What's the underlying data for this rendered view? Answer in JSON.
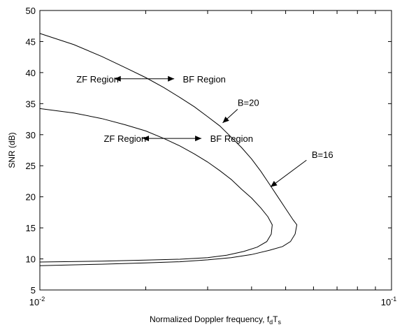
{
  "chart_data": {
    "type": "line",
    "title": "",
    "xlabel": "Normalized Doppler frequency, f_dT_s",
    "xlabel_main": "Normalized Doppler frequency, f",
    "xlabel_sub1": "d",
    "xlabel_mid": "T",
    "xlabel_sub2": "s",
    "ylabel": "SNR (dB)",
    "xscale": "log",
    "xlim": [
      0.01,
      0.1
    ],
    "ylim": [
      5,
      50
    ],
    "grid": false,
    "x_ticks": [
      {
        "value": 0.01,
        "base": "10",
        "exp": "-2"
      },
      {
        "value": 0.1,
        "base": "10",
        "exp": "-1"
      }
    ],
    "y_ticks": [
      5,
      10,
      15,
      20,
      25,
      30,
      35,
      40,
      45,
      50
    ],
    "series": [
      {
        "name": "B=20",
        "points": [
          [
            0.01,
            46.3
          ],
          [
            0.0125,
            44.5
          ],
          [
            0.015,
            42.6
          ],
          [
            0.0175,
            40.8
          ],
          [
            0.02,
            39.2
          ],
          [
            0.0225,
            37.6
          ],
          [
            0.025,
            36.0
          ],
          [
            0.0275,
            34.5
          ],
          [
            0.03,
            32.9
          ],
          [
            0.0325,
            31.4
          ],
          [
            0.035,
            29.6
          ],
          [
            0.0375,
            27.9
          ],
          [
            0.04,
            26.1
          ],
          [
            0.0425,
            24.1
          ],
          [
            0.045,
            22.0
          ],
          [
            0.0475,
            20.0
          ],
          [
            0.05,
            18.1
          ],
          [
            0.0525,
            16.3
          ],
          [
            0.0538,
            15.5
          ],
          [
            0.0532,
            14.0
          ],
          [
            0.0516,
            12.8
          ],
          [
            0.049,
            12.0
          ],
          [
            0.045,
            11.4
          ],
          [
            0.04,
            10.7
          ],
          [
            0.035,
            10.2
          ],
          [
            0.03,
            9.85
          ],
          [
            0.025,
            9.55
          ],
          [
            0.02,
            9.35
          ],
          [
            0.015,
            9.15
          ],
          [
            0.01,
            8.9
          ]
        ]
      },
      {
        "name": "B=16",
        "points": [
          [
            0.01,
            34.2
          ],
          [
            0.0125,
            33.5
          ],
          [
            0.015,
            32.6
          ],
          [
            0.0175,
            31.6
          ],
          [
            0.02,
            30.6
          ],
          [
            0.0225,
            29.4
          ],
          [
            0.025,
            28.2
          ],
          [
            0.0275,
            26.9
          ],
          [
            0.03,
            25.6
          ],
          [
            0.0325,
            24.2
          ],
          [
            0.035,
            22.8
          ],
          [
            0.0375,
            21.2
          ],
          [
            0.04,
            19.8
          ],
          [
            0.0425,
            18.2
          ],
          [
            0.0445,
            16.8
          ],
          [
            0.0458,
            15.5
          ],
          [
            0.0455,
            14.0
          ],
          [
            0.0442,
            12.8
          ],
          [
            0.0415,
            11.9
          ],
          [
            0.038,
            11.2
          ],
          [
            0.034,
            10.6
          ],
          [
            0.03,
            10.2
          ],
          [
            0.025,
            9.95
          ],
          [
            0.02,
            9.8
          ],
          [
            0.015,
            9.65
          ],
          [
            0.01,
            9.5
          ]
        ]
      }
    ],
    "annotations": [
      {
        "text": "ZF Region",
        "x": 0.0127,
        "y": 39
      },
      {
        "text": "BF Region",
        "x": 0.0255,
        "y": 39
      },
      {
        "text": "B=20",
        "x": 0.0365,
        "y": 35.2
      },
      {
        "text": "ZF Region",
        "x": 0.0152,
        "y": 29.4
      },
      {
        "text": "BF Region",
        "x": 0.0305,
        "y": 29.4
      },
      {
        "text": "B=16",
        "x": 0.0593,
        "y": 26.8
      }
    ],
    "arrows": [
      {
        "from": [
          0.0195,
          39
        ],
        "to": [
          0.0163,
          39
        ]
      },
      {
        "from": [
          0.0195,
          39
        ],
        "to": [
          0.0241,
          39
        ]
      },
      {
        "from": [
          0.0365,
          34.1
        ],
        "to": [
          0.0331,
          31.9
        ]
      },
      {
        "from": [
          0.0237,
          29.4
        ],
        "to": [
          0.0196,
          29.4
        ]
      },
      {
        "from": [
          0.0237,
          29.4
        ],
        "to": [
          0.0288,
          29.4
        ]
      },
      {
        "from": [
          0.0573,
          25.9
        ],
        "to": [
          0.0453,
          21.6
        ]
      }
    ]
  }
}
